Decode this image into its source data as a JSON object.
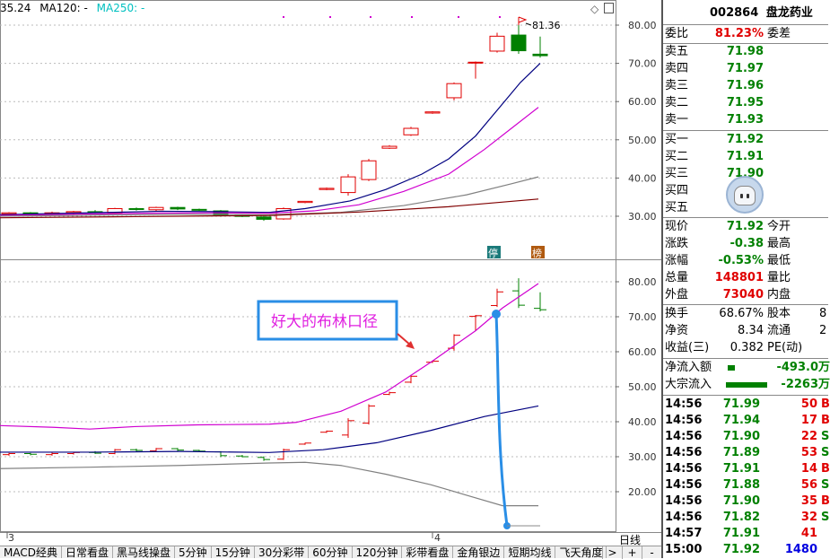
{
  "legend": {
    "price": "35.24",
    "ma120": "MA120: -",
    "ma250": "MA250: -"
  },
  "colors": {
    "up": "#e00000",
    "down": "#008000",
    "ma_dark": "#000080",
    "ma_magenta": "#d000d0",
    "ma_gray": "#808080",
    "ma_brown": "#800000",
    "annotation": "#2a8ee6"
  },
  "upper_axis": [
    "80.00",
    "70.00",
    "60.00",
    "50.00",
    "40.00",
    "30.00"
  ],
  "lower_axis": [
    "80.00",
    "70.00",
    "60.00",
    "50.00",
    "40.00",
    "30.00",
    "20.00"
  ],
  "high_label": "81.36",
  "markers": {
    "stop": "停",
    "bang": "榜"
  },
  "xaxis": {
    "left": "3",
    "mid": "4"
  },
  "annotation": {
    "text": "好大的布林口径"
  },
  "period_label": "日线",
  "tabs": [
    "MACD经典",
    "日常看盘",
    "黑马线操盘",
    "5分钟",
    "15分钟",
    "30分彩带",
    "60分钟",
    "120分钟",
    "彩带看盘",
    "金角银边",
    "短期均线",
    "飞天角度"
  ],
  "tab_controls": [
    ">",
    "+",
    "-"
  ],
  "stock": {
    "code": "002864",
    "name": "盘龙药业"
  },
  "weibi": {
    "label": "委比",
    "value": "81.23%",
    "label2": "委差"
  },
  "sell": [
    {
      "label": "卖五",
      "price": "71.98"
    },
    {
      "label": "卖四",
      "price": "71.97"
    },
    {
      "label": "卖三",
      "price": "71.96"
    },
    {
      "label": "卖二",
      "price": "71.95"
    },
    {
      "label": "卖一",
      "price": "71.93"
    }
  ],
  "buy": [
    {
      "label": "买一",
      "price": "71.92"
    },
    {
      "label": "买二",
      "price": "71.91"
    },
    {
      "label": "买三",
      "price": "71.90"
    },
    {
      "label": "买四",
      "price": ""
    },
    {
      "label": "买五",
      "price": ""
    }
  ],
  "quote": [
    {
      "label": "现价",
      "value": "71.92",
      "label2": "今开"
    },
    {
      "label": "涨跌",
      "value": "-0.38",
      "label2": "最高"
    },
    {
      "label": "涨幅",
      "value": "-0.53%",
      "label2": "最低"
    },
    {
      "label": "总量",
      "value": "148801",
      "label2": "量比"
    },
    {
      "label": "外盘",
      "value": "73040",
      "label2": "内盘"
    }
  ],
  "stats": [
    {
      "label": "换手",
      "value": "68.67%",
      "label2": "股本",
      "value2": "8"
    },
    {
      "label": "净资",
      "value": "8.34",
      "label2": "流通",
      "value2": "2"
    },
    {
      "label": "收益(三)",
      "value": "0.382",
      "label2": "PE(动)",
      "value2": ""
    }
  ],
  "flows": [
    {
      "label": "净流入额",
      "value": "-493.0万"
    },
    {
      "label": "大宗流入",
      "value": "-2263万"
    }
  ],
  "ticks": [
    {
      "time": "14:56",
      "price": "71.99",
      "vol": "50",
      "dir": "B"
    },
    {
      "time": "14:56",
      "price": "71.94",
      "vol": "17",
      "dir": "B"
    },
    {
      "time": "14:56",
      "price": "71.90",
      "vol": "22",
      "dir": "S"
    },
    {
      "time": "14:56",
      "price": "71.89",
      "vol": "53",
      "dir": "S"
    },
    {
      "time": "14:56",
      "price": "71.91",
      "vol": "14",
      "dir": "B"
    },
    {
      "time": "14:56",
      "price": "71.88",
      "vol": "56",
      "dir": "S"
    },
    {
      "time": "14:56",
      "price": "71.90",
      "vol": "35",
      "dir": "B"
    },
    {
      "time": "14:56",
      "price": "71.82",
      "vol": "32",
      "dir": "S"
    },
    {
      "time": "14:57",
      "price": "71.91",
      "vol": "41",
      "dir": ""
    },
    {
      "time": "15:00",
      "price": "71.92",
      "vol": "1480",
      "dir": ""
    }
  ]
}
